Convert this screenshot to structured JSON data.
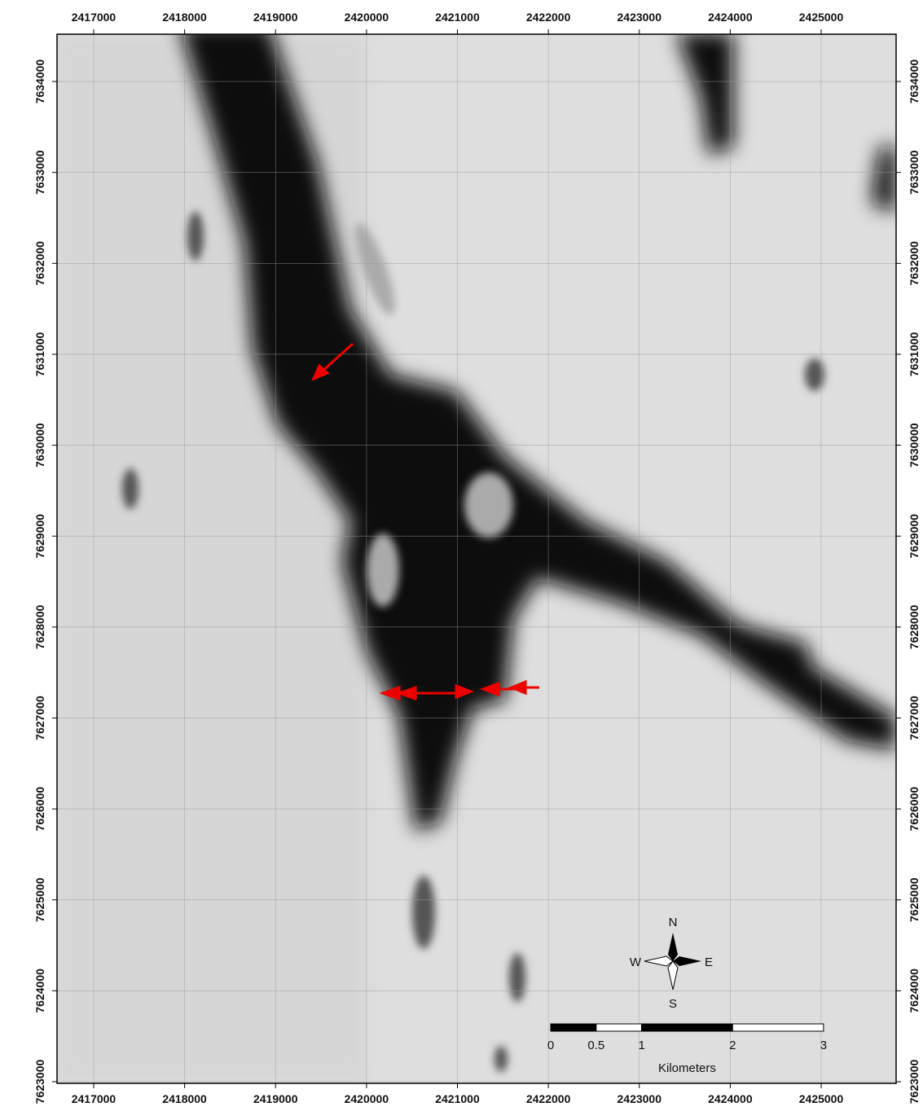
{
  "map": {
    "xlim": [
      2416597,
      2425824
    ],
    "ylim": [
      7622982,
      7634520
    ],
    "xticks": [
      2417000,
      2418000,
      2419000,
      2420000,
      2421000,
      2422000,
      2423000,
      2424000,
      2425000
    ],
    "yticks": [
      7623000,
      7624000,
      7625000,
      7626000,
      7627000,
      7628000,
      7629000,
      7630000,
      7631000,
      7632000,
      7633000,
      7634000
    ],
    "grid": true,
    "compass": {
      "north": "N",
      "east": "E",
      "south": "S",
      "west": "W"
    },
    "scale_bar": {
      "ticks": [
        0,
        0.5,
        1,
        2,
        3
      ],
      "unit": "Kilometers"
    }
  }
}
